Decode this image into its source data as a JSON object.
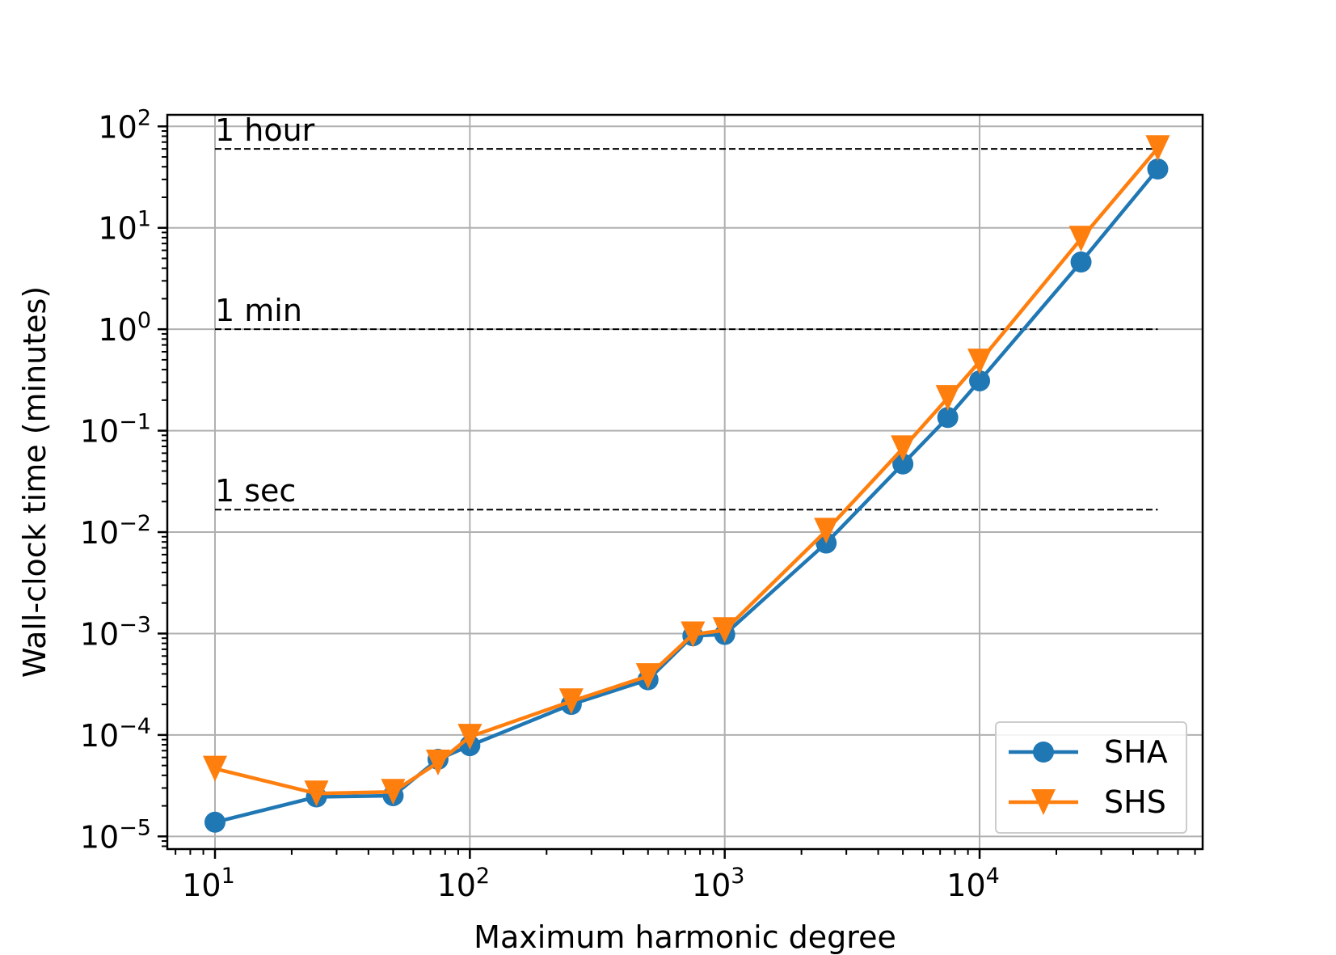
{
  "chart_data": {
    "type": "line",
    "title": "",
    "xlabel": "Maximum harmonic degree",
    "ylabel": "Wall-clock time (minutes)",
    "xscale": "log",
    "yscale": "log",
    "xlim": [
      6.5,
      75000
    ],
    "ylim": [
      7.5e-06,
      130
    ],
    "grid": true,
    "legend_position": "lower-right",
    "x_ticks": [
      {
        "base": "10",
        "exp": "1",
        "value": 10
      },
      {
        "base": "10",
        "exp": "2",
        "value": 100
      },
      {
        "base": "10",
        "exp": "3",
        "value": 1000
      },
      {
        "base": "10",
        "exp": "4",
        "value": 10000
      }
    ],
    "y_ticks": [
      {
        "base": "10",
        "exp": "−5",
        "value": 1e-05
      },
      {
        "base": "10",
        "exp": "−4",
        "value": 0.0001
      },
      {
        "base": "10",
        "exp": "−3",
        "value": 0.001
      },
      {
        "base": "10",
        "exp": "−2",
        "value": 0.01
      },
      {
        "base": "10",
        "exp": "−1",
        "value": 0.1
      },
      {
        "base": "10",
        "exp": "0",
        "value": 1
      },
      {
        "base": "10",
        "exp": "1",
        "value": 10
      },
      {
        "base": "10",
        "exp": "2",
        "value": 100
      }
    ],
    "x": [
      10,
      25,
      50,
      75,
      100,
      250,
      500,
      750,
      1000,
      2500,
      5000,
      7500,
      10000,
      25000,
      50000
    ],
    "series": [
      {
        "name": "SHA",
        "color": "#1f77b4",
        "marker": "circle",
        "values": [
          1.38e-05,
          2.45e-05,
          2.52e-05,
          5.75e-05,
          7.85e-05,
          0.0002,
          0.00035,
          0.00095,
          0.00098,
          0.0078,
          0.047,
          0.135,
          0.31,
          4.6,
          38
        ]
      },
      {
        "name": "SHS",
        "color": "#ff7f0e",
        "marker": "triangle-down",
        "values": [
          4.65e-05,
          2.65e-05,
          2.75e-05,
          5.35e-05,
          9.6e-05,
          0.000215,
          0.00038,
          0.00098,
          0.00108,
          0.0103,
          0.067,
          0.21,
          0.48,
          7.8,
          61
        ]
      }
    ],
    "reference_lines": [
      {
        "label": "1 hour",
        "value": 60,
        "x_range": [
          10,
          50000
        ]
      },
      {
        "label": "1 min",
        "value": 1,
        "x_range": [
          10,
          50000
        ]
      },
      {
        "label": "1 sec",
        "value": 0.0166667,
        "x_range": [
          10,
          50000
        ]
      }
    ]
  }
}
